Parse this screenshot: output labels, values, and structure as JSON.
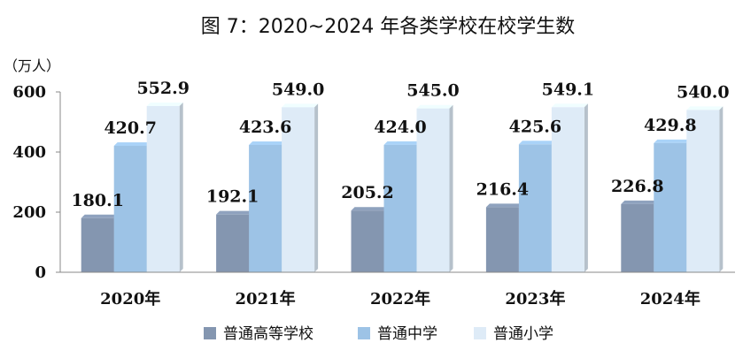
{
  "chart_data": {
    "type": "bar",
    "title": "图 7：2020~2024 年各类学校在校学生数",
    "unit_label": "（万人）",
    "categories": [
      "2020年",
      "2021年",
      "2022年",
      "2023年",
      "2024年"
    ],
    "series": [
      {
        "name": "普通高等学校",
        "values": [
          180.1,
          192.1,
          205.2,
          216.4,
          226.8
        ],
        "color": "#8496B0"
      },
      {
        "name": "普通中学",
        "values": [
          420.7,
          423.6,
          424.0,
          425.6,
          429.8
        ],
        "color": "#9DC3E6"
      },
      {
        "name": "普通小学",
        "values": [
          552.9,
          549.0,
          545.0,
          549.1,
          540.0
        ],
        "color": "#DEEBF7"
      }
    ],
    "data_labels": [
      [
        "180.1",
        "192.1",
        "205.2",
        "216.4",
        "226.8"
      ],
      [
        "420.7",
        "423.6",
        "424.0",
        "425.6",
        "429.8"
      ],
      [
        "552.9",
        "549.0",
        "545.0",
        "549.1",
        "540.0"
      ]
    ],
    "yticks": [
      "0",
      "200",
      "400",
      "600"
    ],
    "ylim": [
      0,
      600
    ],
    "grid": false,
    "legend_position": "bottom",
    "style": "3d-bars"
  }
}
